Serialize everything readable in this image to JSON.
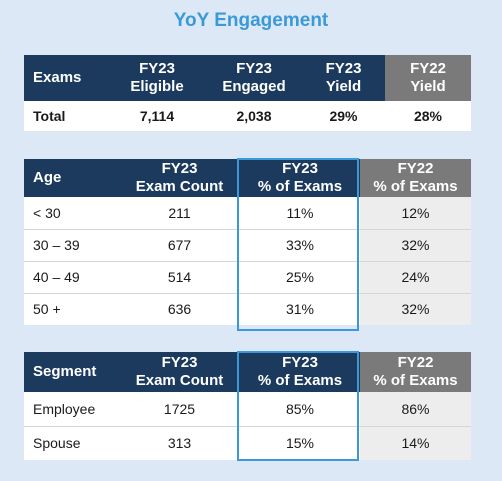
{
  "title": "YoY Engagement",
  "exams_table": {
    "headers": [
      "Exams",
      "FY23\nEligible",
      "FY23\nEngaged",
      "FY23\nYield",
      "FY22\nYield"
    ],
    "rows": [
      [
        "Total",
        "7,114",
        "2,038",
        "29%",
        "28%"
      ]
    ]
  },
  "age_table": {
    "headers": [
      "Age",
      "FY23\nExam Count",
      "FY23\n% of Exams",
      "FY22\n% of Exams"
    ],
    "rows": [
      [
        "< 30",
        "211",
        "11%",
        "12%"
      ],
      [
        "30 – 39",
        "677",
        "33%",
        "32%"
      ],
      [
        "40 – 49",
        "514",
        "25%",
        "24%"
      ],
      [
        "50 +",
        "636",
        "31%",
        "32%"
      ]
    ]
  },
  "segment_table": {
    "headers": [
      "Segment",
      "FY23\nExam Count",
      "FY23\n% of Exams",
      "FY22\n% of Exams"
    ],
    "rows": [
      [
        "Employee",
        "1725",
        "85%",
        "86%"
      ],
      [
        "Spouse",
        "313",
        "15%",
        "14%"
      ]
    ]
  },
  "colors": {
    "header_navy": "#1b3a5e",
    "header_gray": "#7a7a7a",
    "title_blue": "#3a9ad9",
    "background": "#dde8f6"
  }
}
